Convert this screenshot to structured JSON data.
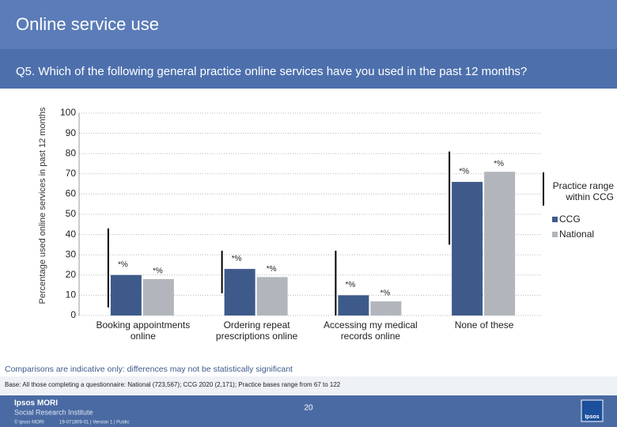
{
  "header": {
    "title": "Online service use",
    "question": "Q5. Which of the following general practice online services have you used in the past 12 months?"
  },
  "chart_data": {
    "type": "bar",
    "y_label": "Percentage used online services in past 12 months",
    "categories": [
      "Booking appointments online",
      "Ordering repeat prescriptions online",
      "Accessing my medical records online",
      "None of these"
    ],
    "series": [
      {
        "name": "CCG",
        "color": "#3d5a8a",
        "values": [
          20,
          23,
          10,
          66
        ]
      },
      {
        "name": "National",
        "color": "#b2b6bc",
        "values": [
          18,
          19,
          7,
          71
        ]
      }
    ],
    "range": {
      "name": "Practice range within CCG",
      "color": "#000000",
      "low": [
        4,
        11,
        0,
        35
      ],
      "high": [
        43,
        32,
        32,
        81
      ]
    },
    "annotations": [
      "*%",
      "*%",
      "*%",
      "*%",
      "*%",
      "*%",
      "*%",
      "*%"
    ],
    "ylim": [
      0,
      100
    ],
    "yticks": [
      0,
      10,
      20,
      30,
      40,
      50,
      60,
      70,
      80,
      90,
      100
    ],
    "grid": true
  },
  "notes": {
    "disclaimer": "Comparisons are indicative only: differences may not be statistically significant",
    "base": "Base: All those completing a questionnaire: National (723,567); CCG 2020 (2,171); Practice bases range from 67 to 122"
  },
  "footer": {
    "brand": "Ipsos MORI",
    "institute": "Social Research Institute",
    "page": "20",
    "copyright": "© Ipsos MORI",
    "job": "19-071809-01 | Version 1 | Public",
    "logo": "Ipsos"
  }
}
